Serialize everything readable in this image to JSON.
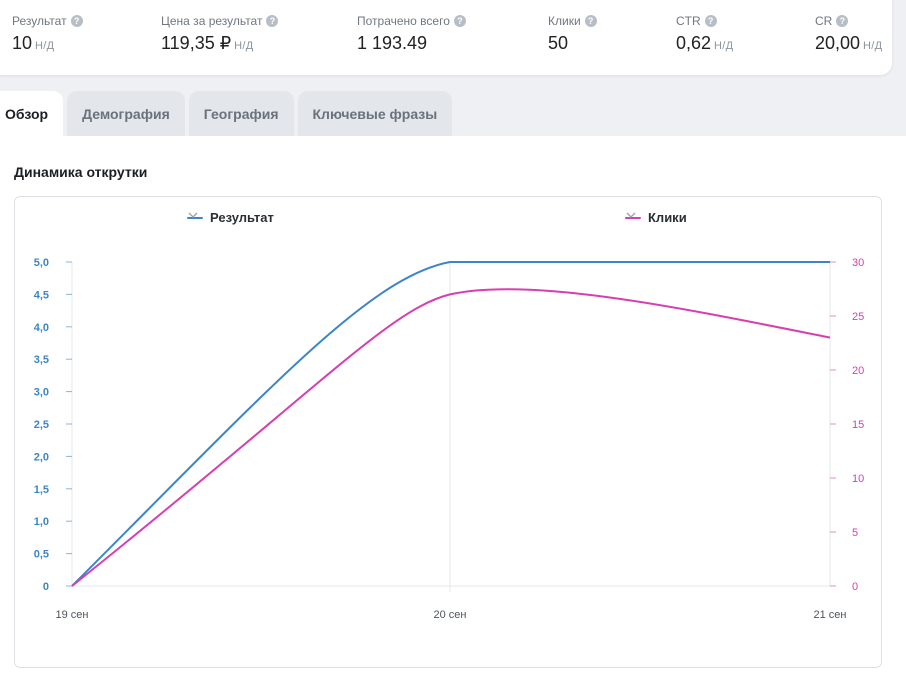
{
  "metrics": [
    {
      "label": "Результат",
      "value": "10",
      "unit": "Н/Д"
    },
    {
      "label": "Цена за результат",
      "value": "119,35 ₽",
      "unit": "Н/Д"
    },
    {
      "label": "Потрачено всего",
      "value": "1 193.49",
      "unit": ""
    },
    {
      "label": "Клики",
      "value": "50",
      "unit": ""
    },
    {
      "label": "CTR",
      "value": "0,62",
      "unit": "Н/Д"
    },
    {
      "label": "CR",
      "value": "20,00",
      "unit": "Н/Д"
    }
  ],
  "tabs": [
    {
      "label": "Обзор",
      "active": true
    },
    {
      "label": "Демография",
      "active": false
    },
    {
      "label": "География",
      "active": false
    },
    {
      "label": "Ключевые фразы",
      "active": false
    }
  ],
  "section_title": "Динамика открутки",
  "colors": {
    "left_series": "#3d85c6",
    "right_series": "#d63fb0",
    "grid": "#e4e7eb"
  },
  "chart_data": {
    "type": "line",
    "x": [
      "19 сен",
      "20 сен",
      "21 сен"
    ],
    "series": [
      {
        "name": "Результат",
        "axis": "left",
        "values": [
          0,
          5,
          5
        ]
      },
      {
        "name": "Клики",
        "axis": "right",
        "values": [
          0,
          27,
          23
        ]
      }
    ],
    "y_left": {
      "ticks": [
        "0",
        "0,5",
        "1,0",
        "1,5",
        "2,0",
        "2,5",
        "3,0",
        "3,5",
        "4,0",
        "4,5",
        "5,0"
      ],
      "min": 0,
      "max": 5
    },
    "y_right": {
      "ticks": [
        "0",
        "5",
        "10",
        "15",
        "20",
        "25",
        "30"
      ],
      "min": 0,
      "max": 30
    },
    "legend_position": "top"
  }
}
